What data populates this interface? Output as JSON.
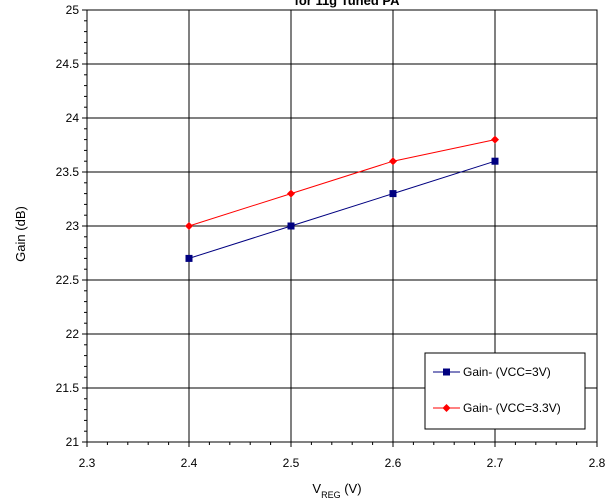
{
  "chart_data": {
    "type": "line",
    "title": "for 11g Tuned PA",
    "xlabel": {
      "main": "V",
      "sub": "REG",
      "unit": " (V)"
    },
    "ylabel": "Gain (dB)",
    "xlim": [
      2.3,
      2.8
    ],
    "ylim": [
      21,
      25
    ],
    "xticks": [
      "2.3",
      "2.4",
      "2.5",
      "2.6",
      "2.7",
      "2.8"
    ],
    "yticks": [
      "21",
      "21.5",
      "22",
      "22.5",
      "23",
      "23.5",
      "24",
      "24.5",
      "25"
    ],
    "grid": true,
    "legend_position": "bottom-right",
    "x": [
      2.4,
      2.5,
      2.6,
      2.7
    ],
    "series": [
      {
        "name": "Gain- (VCC=3V)",
        "values": [
          22.7,
          23.0,
          23.3,
          23.6
        ],
        "color": "#000080",
        "marker": "square"
      },
      {
        "name": "Gain- (VCC=3.3V)",
        "values": [
          23.0,
          23.3,
          23.6,
          23.8
        ],
        "color": "#ff0000",
        "marker": "diamond"
      }
    ]
  }
}
